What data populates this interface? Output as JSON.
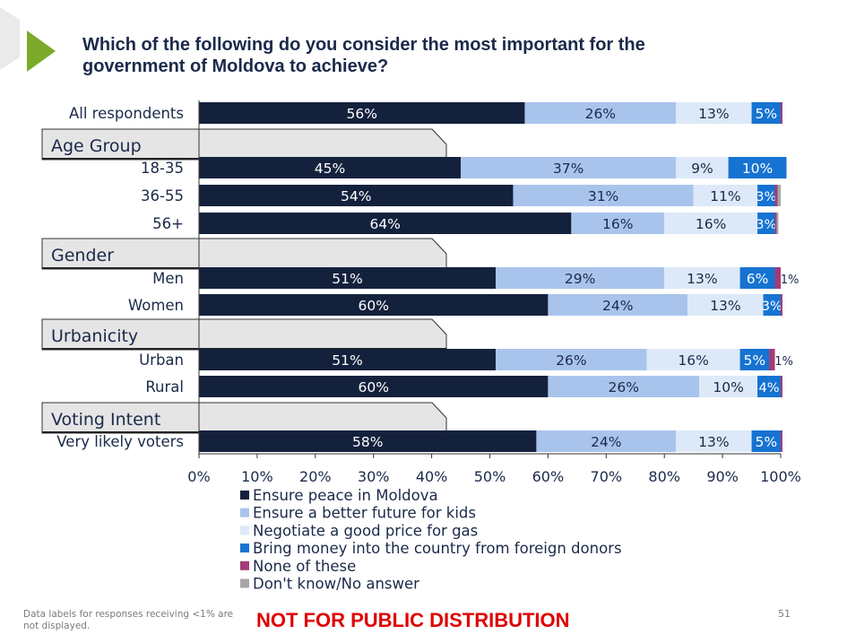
{
  "slide": {
    "title_line1": "Which of the following do you consider the most important for the",
    "title_line2": "government of Moldova  to achieve?",
    "footnote_line1": "Data labels for responses receiving <1% are",
    "footnote_line2": "not displayed.",
    "disclaimer": "NOT FOR PUBLIC DISTRIBUTION",
    "page_number": "51"
  },
  "chart_data": {
    "type": "bar",
    "orientation": "horizontal",
    "stacked": true,
    "title": "Which of the following do you consider the most important for the government of Moldova  to achieve?",
    "xlim": [
      0,
      100
    ],
    "x_ticks": [
      "0%",
      "10%",
      "20%",
      "30%",
      "40%",
      "50%",
      "60%",
      "70%",
      "80%",
      "90%",
      "100%"
    ],
    "legend_position": "bottom",
    "series": [
      {
        "name": "Ensure peace in Moldova",
        "color": "#14213d",
        "label_color": "#ffffff"
      },
      {
        "name": "Ensure a better future for kids",
        "color": "#a9c4ec",
        "label_color": "#1b2a4a"
      },
      {
        "name": "Negotiate a good price for gas",
        "color": "#dde9f8",
        "label_color": "#1b2a4a"
      },
      {
        "name": "Bring money into the country from foreign donors",
        "color": "#1673d1",
        "label_color": "#ffffff"
      },
      {
        "name": "None of these",
        "color": "#a23c78",
        "label_color": "#1b2a4a"
      },
      {
        "name": "Don't know/No answer",
        "color": "#a6a6a6",
        "label_color": "#1b2a4a"
      }
    ],
    "rows": [
      {
        "kind": "bar",
        "label": "All respondents",
        "values": [
          56,
          26,
          13,
          5,
          0.3,
          0
        ],
        "labels": [
          "56%",
          "26%",
          "13%",
          "5%",
          "",
          ""
        ]
      },
      {
        "kind": "group",
        "label": "Age Group"
      },
      {
        "kind": "bar",
        "label": "18-35",
        "values": [
          45,
          37,
          9,
          10,
          0,
          0
        ],
        "labels": [
          "45%",
          "37%",
          "9%",
          "10%",
          "",
          ""
        ]
      },
      {
        "kind": "bar",
        "label": "36-55",
        "values": [
          54,
          31,
          11,
          3,
          0.5,
          0.5
        ],
        "labels": [
          "54%",
          "31%",
          "11%",
          "3%",
          "",
          ""
        ]
      },
      {
        "kind": "bar",
        "label": "56+",
        "values": [
          64,
          16,
          16,
          3,
          0.3,
          0.3
        ],
        "labels": [
          "64%",
          "16%",
          "16%",
          "3%",
          "",
          ""
        ]
      },
      {
        "kind": "group",
        "label": "Gender"
      },
      {
        "kind": "bar",
        "label": "Men",
        "values": [
          51,
          29,
          13,
          6,
          1,
          0
        ],
        "labels": [
          "51%",
          "29%",
          "13%",
          "6%",
          "1%",
          ""
        ]
      },
      {
        "kind": "bar",
        "label": "Women",
        "values": [
          60,
          24,
          13,
          3,
          0.3,
          0
        ],
        "labels": [
          "60%",
          "24%",
          "13%",
          "3%",
          "",
          ""
        ]
      },
      {
        "kind": "group",
        "label": "Urbanicity"
      },
      {
        "kind": "bar",
        "label": "Urban",
        "values": [
          51,
          26,
          16,
          5,
          1,
          0
        ],
        "labels": [
          "51%",
          "26%",
          "16%",
          "5%",
          "1%",
          ""
        ]
      },
      {
        "kind": "bar",
        "label": "Rural",
        "values": [
          60,
          26,
          10,
          4,
          0.3,
          0
        ],
        "labels": [
          "60%",
          "26%",
          "10%",
          "4%",
          "",
          ""
        ]
      },
      {
        "kind": "group",
        "label": "Voting Intent"
      },
      {
        "kind": "bar",
        "label": "Very likely voters",
        "values": [
          58,
          24,
          13,
          5,
          0.3,
          0
        ],
        "labels": [
          "58%",
          "24%",
          "13%",
          "5%",
          "",
          ""
        ]
      }
    ]
  },
  "colors": {
    "title_text": "#1b2a4a",
    "logo_green": "#7cab2b",
    "group_box_fill": "#e5e5e5",
    "disclaimer_red": "#e00000"
  }
}
